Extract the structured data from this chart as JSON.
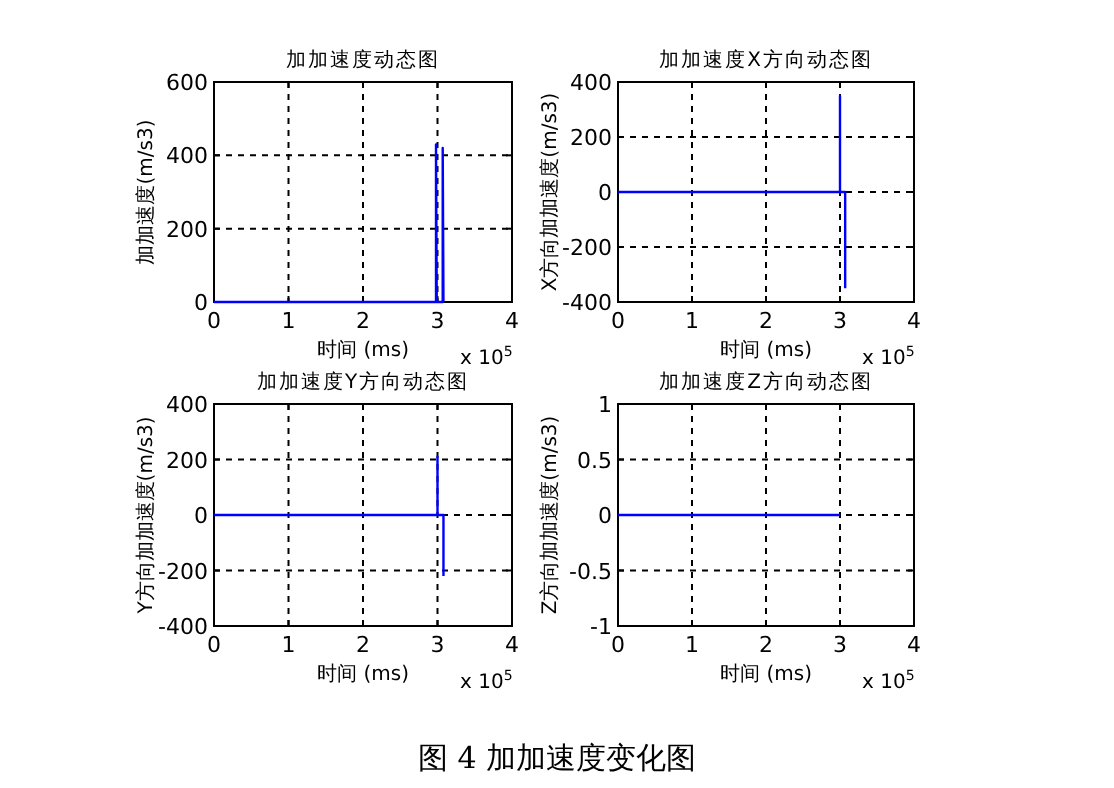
{
  "chart_data": [
    {
      "type": "line",
      "title": "加加速度动态图",
      "xlabel": "时间 (ms)",
      "ylabel": "加加速度(m/s3)",
      "xlim": [
        0,
        4
      ],
      "xticks": [
        0,
        1,
        2,
        3,
        4
      ],
      "ylim": [
        0,
        600
      ],
      "yticks": [
        0,
        200,
        400,
        600
      ],
      "grid": true,
      "annotations": [
        "x 10$^{5}$"
      ],
      "series": [
        {
          "color": "#0000ff",
          "x": [
            0,
            2.98,
            2.98,
            2.99,
            3.07,
            3.07,
            3.08
          ],
          "values": [
            0,
            0,
            430,
            0,
            0,
            420,
            0
          ]
        }
      ]
    },
    {
      "type": "line",
      "title": "加加速度X方向动态图",
      "xlabel": "时间 (ms)",
      "ylabel": "X方向加加速度(m/s3)",
      "xlim": [
        0,
        4
      ],
      "xticks": [
        0,
        1,
        2,
        3,
        4
      ],
      "ylim": [
        -400,
        400
      ],
      "yticks": [
        -400,
        -200,
        0,
        200,
        400
      ],
      "grid": true,
      "annotations": [
        "x 10$^{5}$"
      ],
      "series": [
        {
          "color": "#0000ff",
          "x": [
            0,
            3.0,
            3.0,
            3.0,
            3.07,
            3.07
          ],
          "values": [
            0,
            0,
            350,
            0,
            0,
            -350
          ]
        }
      ]
    },
    {
      "type": "line",
      "title": "加加速度Y方向动态图",
      "xlabel": "时间 (ms)",
      "ylabel": "Y方向加加速度(m/s3)",
      "xlim": [
        0,
        4
      ],
      "xticks": [
        0,
        1,
        2,
        3,
        4
      ],
      "ylim": [
        -400,
        400
      ],
      "yticks": [
        -400,
        -200,
        0,
        200,
        400
      ],
      "grid": true,
      "annotations": [
        "x 10$^{5}$"
      ],
      "series": [
        {
          "color": "#0000ff",
          "x": [
            0,
            3.0,
            3.0,
            3.0,
            3.08,
            3.08
          ],
          "values": [
            0,
            0,
            210,
            0,
            0,
            -220
          ]
        }
      ]
    },
    {
      "type": "line",
      "title": "加加速度Z方向动态图",
      "xlabel": "时间 (ms)",
      "ylabel": "Z方向加加速度(m/s3)",
      "xlim": [
        0,
        4
      ],
      "xticks": [
        0,
        1,
        2,
        3,
        4
      ],
      "ylim": [
        -1,
        1
      ],
      "yticks": [
        -1,
        -0.5,
        0,
        0.5,
        1
      ],
      "grid": true,
      "annotations": [
        "x 10$^{5}$",
        "图 4  加加速度变化图"
      ],
      "series": [
        {
          "color": "#0000ff",
          "x": [
            0,
            3.0
          ],
          "values": [
            0,
            0
          ]
        }
      ]
    }
  ]
}
